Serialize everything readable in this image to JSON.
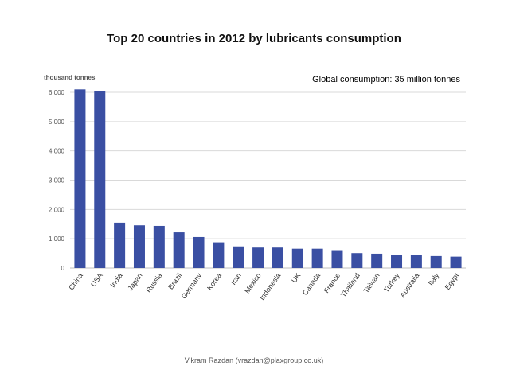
{
  "slide": {
    "title": "Top 20 countries in 2012 by lubricants consumption",
    "footer": "Vikram Razdan (vrazdan@plaxgroup.co.uk)"
  },
  "colors": {
    "bar": "#3a4fa3",
    "grid": "#d9d9d9",
    "axis_text": "#555555",
    "annotation": "#000000"
  },
  "chart_data": {
    "type": "bar",
    "ylabel": "thousand tonnes",
    "annotation": "Global consumption: 35 million tonnes",
    "categories": [
      "China",
      "USA",
      "India",
      "Japan",
      "Russia",
      "Brazil",
      "Germany",
      "Korea",
      "Iran",
      "Mexico",
      "Indonesia",
      "UK",
      "Canada",
      "France",
      "Thailand",
      "Taiwan",
      "Turkey",
      "Australia",
      "Italy",
      "Egypt"
    ],
    "values": [
      6100,
      6050,
      1550,
      1460,
      1440,
      1220,
      1060,
      880,
      740,
      700,
      700,
      660,
      660,
      610,
      510,
      490,
      460,
      450,
      410,
      390
    ],
    "ylim": [
      0,
      6000
    ],
    "yticks": [
      0,
      1000,
      2000,
      3000,
      4000,
      5000,
      6000
    ],
    "ytick_labels": [
      "0",
      "1.000",
      "2.000",
      "3.000",
      "4.000",
      "5.000",
      "6.000"
    ],
    "grid": true,
    "legend": "none"
  }
}
